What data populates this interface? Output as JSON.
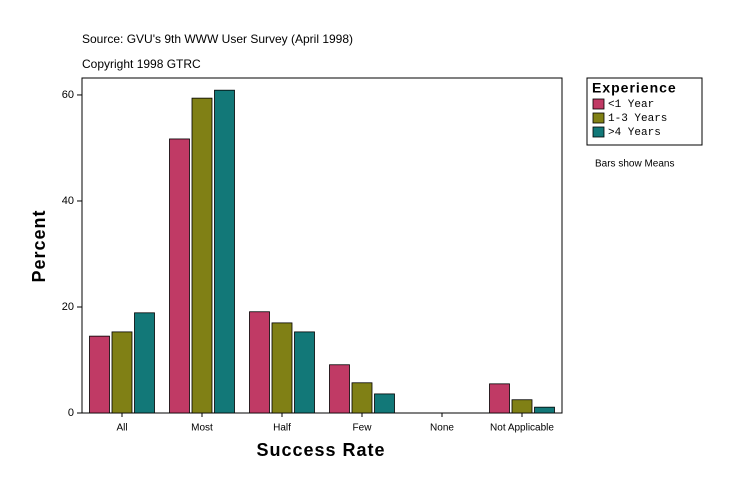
{
  "chart_data": {
    "type": "bar",
    "subtitle": "Source: GVU's 9th WWW User Survey (April 1998)",
    "copyright": "Copyright 1998 GTRC",
    "x_label": "Success Rate",
    "y_label": "Percent",
    "legend_title": "Experience",
    "annotation": "Bars show Means",
    "categories": [
      "All",
      "Most",
      "Half",
      "Few",
      "None",
      "Not Applicable"
    ],
    "series": [
      {
        "name": "<1 Year",
        "color": "#c03a65",
        "values": [
          14.5,
          51.7,
          19.1,
          9.1,
          0,
          5.5
        ]
      },
      {
        "name": "1-3 Years",
        "color": "#808015",
        "values": [
          15.3,
          59.4,
          17.0,
          5.7,
          0,
          2.5
        ]
      },
      {
        "name": ">4 Years",
        "color": "#127878",
        "values": [
          18.9,
          60.9,
          15.3,
          3.6,
          0,
          1.1
        ]
      }
    ],
    "ylim": [
      0,
      63.2
    ],
    "yticks": [
      0,
      20,
      40,
      60
    ],
    "legend_position": "right"
  }
}
